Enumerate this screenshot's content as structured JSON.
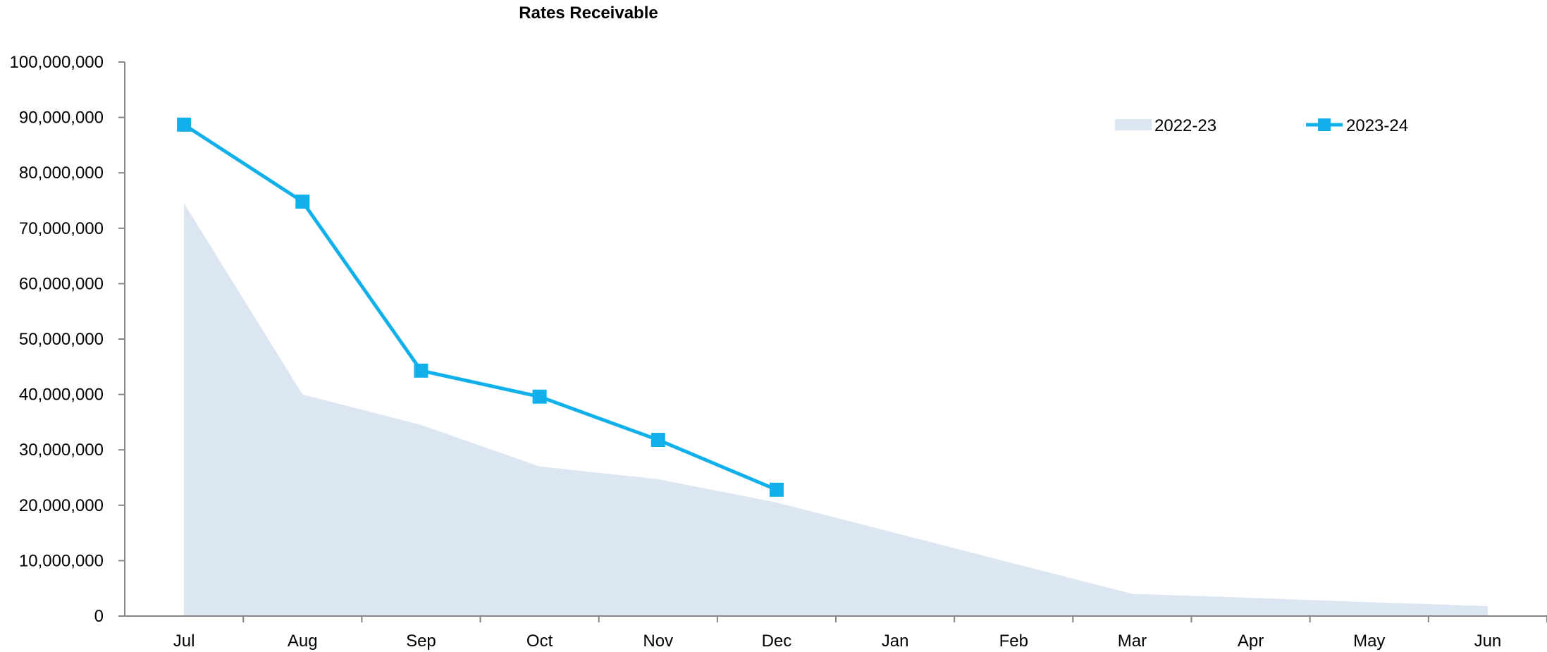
{
  "chart_data": {
    "type": "line",
    "title": "Rates Receivable",
    "xlabel": "",
    "ylabel": "",
    "categories": [
      "Jul",
      "Aug",
      "Sep",
      "Oct",
      "Nov",
      "Dec",
      "Jan",
      "Feb",
      "Mar",
      "Apr",
      "May",
      "Jun"
    ],
    "ylim": [
      0,
      100000000
    ],
    "yticks": [
      0,
      10000000,
      20000000,
      30000000,
      40000000,
      50000000,
      60000000,
      70000000,
      80000000,
      90000000,
      100000000
    ],
    "ytick_labels": [
      "0",
      "10,000,000",
      "20,000,000",
      "30,000,000",
      "40,000,000",
      "50,000,000",
      "60,000,000",
      "70,000,000",
      "80,000,000",
      "90,000,000",
      "100,000,000"
    ],
    "grid": false,
    "legend_position": "top-right",
    "series": [
      {
        "name": "2022-23",
        "type": "area",
        "color": "#dce6f2",
        "values": [
          74500000,
          40000000,
          34500000,
          27000000,
          24700000,
          20500000,
          15000000,
          9500000,
          4000000,
          3300000,
          2500000,
          1800000
        ]
      },
      {
        "name": "2023-24",
        "type": "line",
        "marker": "square",
        "color": "#12b0ea",
        "values": [
          88700000,
          74800000,
          44300000,
          39600000,
          31800000,
          22800000,
          null,
          null,
          null,
          null,
          null,
          null
        ]
      }
    ]
  }
}
